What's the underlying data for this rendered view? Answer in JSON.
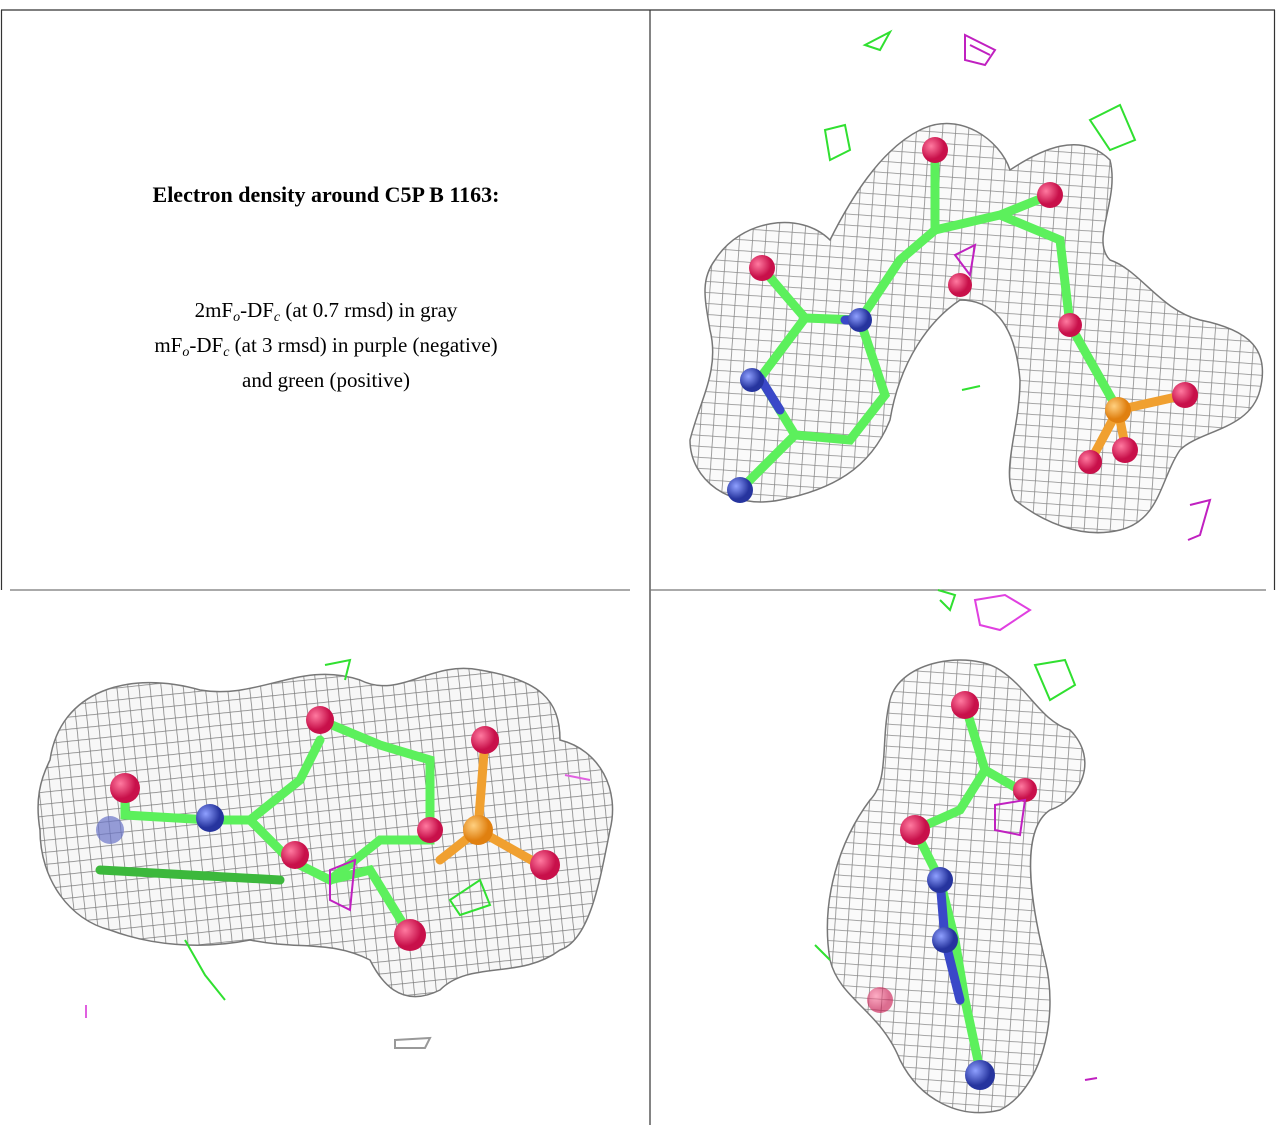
{
  "legend": {
    "title": "Electron density around C5P B 1163:",
    "lines": [
      [
        "2mF",
        "o",
        "-DF",
        "c",
        " (at 0.7 rmsd) in gray"
      ],
      [
        "mF",
        "o",
        "-DF",
        "c",
        " (at 3 rmsd) in purple (negative)"
      ],
      [
        "and green (positive)"
      ]
    ]
  }
}
